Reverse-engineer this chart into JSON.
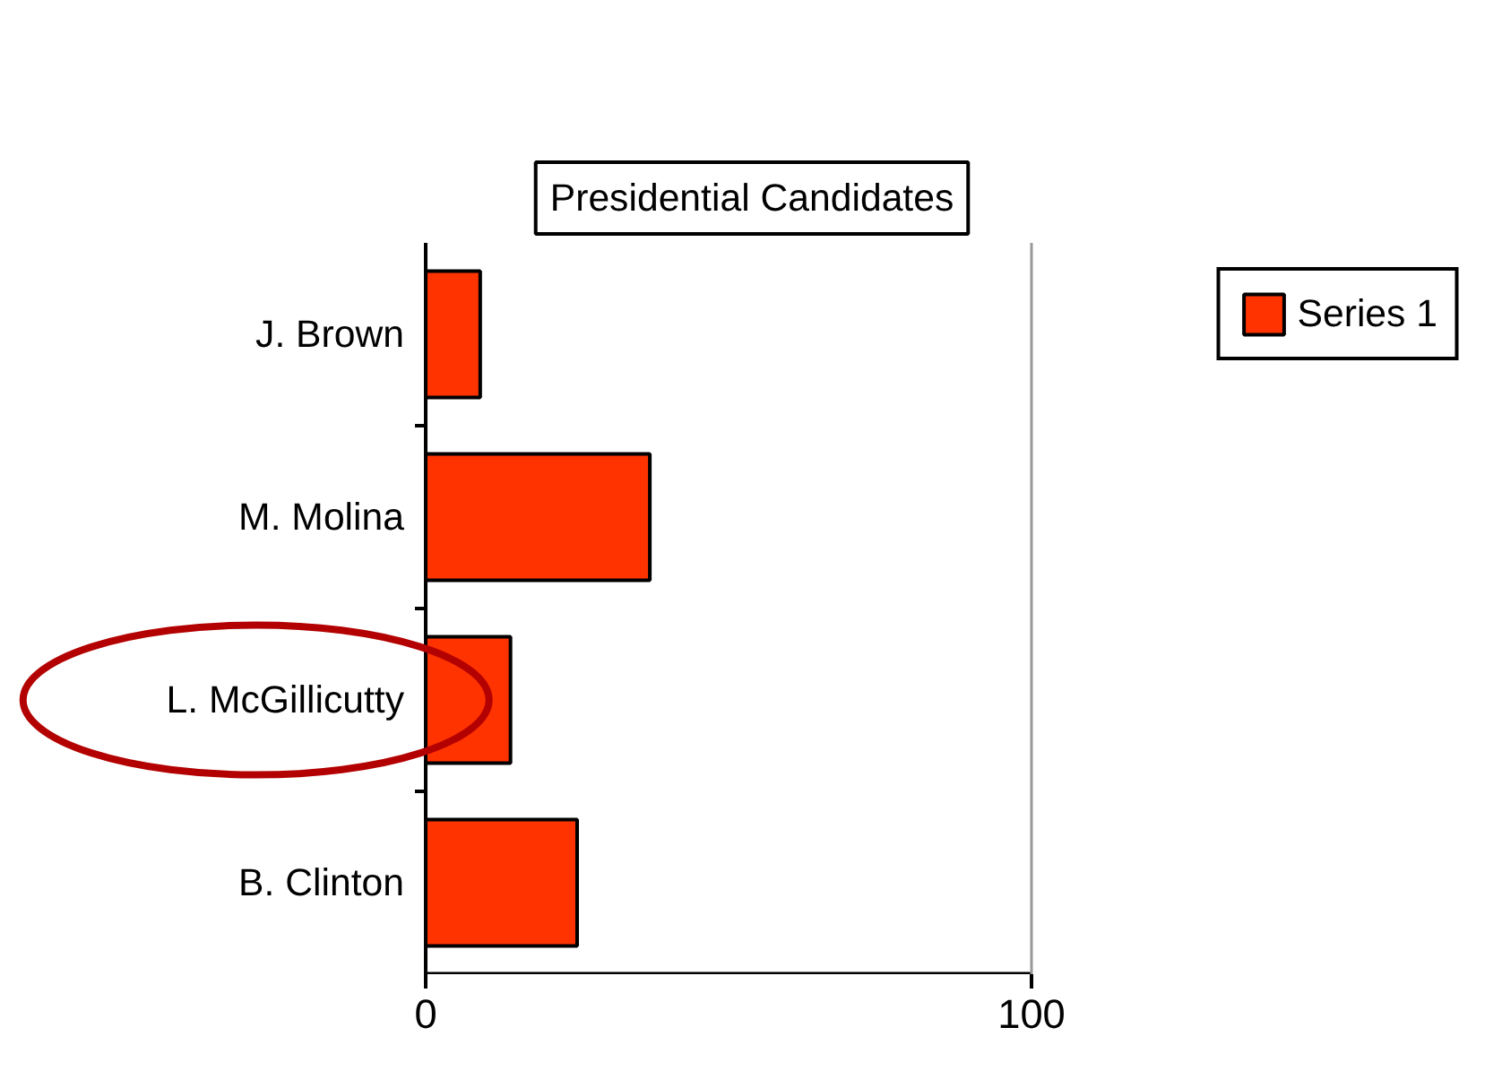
{
  "chart_data": {
    "type": "bar",
    "orientation": "horizontal",
    "title": "Presidential Candidates",
    "categories": [
      "J. Brown",
      "M. Molina",
      "L. McGillicutty",
      "B. Clinton"
    ],
    "series": [
      {
        "name": "Series 1",
        "color": "#ff3300",
        "values": [
          9,
          37,
          14,
          25
        ]
      }
    ],
    "xlim": [
      0,
      100
    ],
    "xticks": [
      0,
      100
    ],
    "ref_lines": [
      {
        "axis": "x",
        "value": 100,
        "color": "#999999"
      }
    ],
    "legend": "top right"
  }
}
